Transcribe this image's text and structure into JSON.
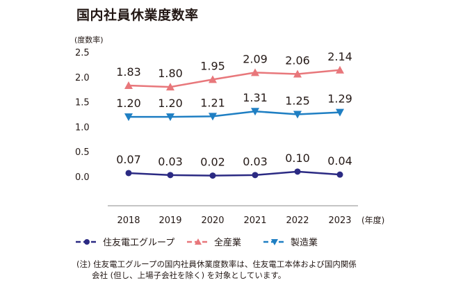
{
  "title": "国内社員休業度数率",
  "chart_data": {
    "type": "line",
    "title": "国内社員休業度数率",
    "ylabel": "(度数率)",
    "xlabel": "(年度)",
    "categories": [
      "2018",
      "2019",
      "2020",
      "2021",
      "2022",
      "2023"
    ],
    "y_ticks": [
      "2.5",
      "2.0",
      "1.5",
      "1.0",
      "0.5",
      "0.0"
    ],
    "ylim": [
      0.0,
      2.5
    ],
    "grid": false,
    "legend_position": "bottom",
    "series": [
      {
        "name": "住友電工グループ",
        "values": [
          0.07,
          0.03,
          0.02,
          0.03,
          0.1,
          0.04
        ],
        "labels": [
          "0.07",
          "0.03",
          "0.02",
          "0.03",
          "0.10",
          "0.04"
        ],
        "color": "#2b2a83",
        "marker": "circle"
      },
      {
        "name": "全産業",
        "values": [
          1.83,
          1.8,
          1.95,
          2.09,
          2.06,
          2.14
        ],
        "labels": [
          "1.83",
          "1.80",
          "1.95",
          "2.09",
          "2.06",
          "2.14"
        ],
        "color": "#e8777b",
        "marker": "triangle-up"
      },
      {
        "name": "製造業",
        "values": [
          1.2,
          1.2,
          1.21,
          1.31,
          1.25,
          1.29
        ],
        "labels": [
          "1.20",
          "1.20",
          "1.21",
          "1.31",
          "1.25",
          "1.29"
        ],
        "color": "#1f7fc3",
        "marker": "triangle-down"
      }
    ]
  },
  "footnote": {
    "line1": "(注) 住友電工グループの国内社員休業度数率は、住友電工本体および国内関係",
    "line2": "会社 (但し、上場子会社を除く) を対象としています。"
  }
}
